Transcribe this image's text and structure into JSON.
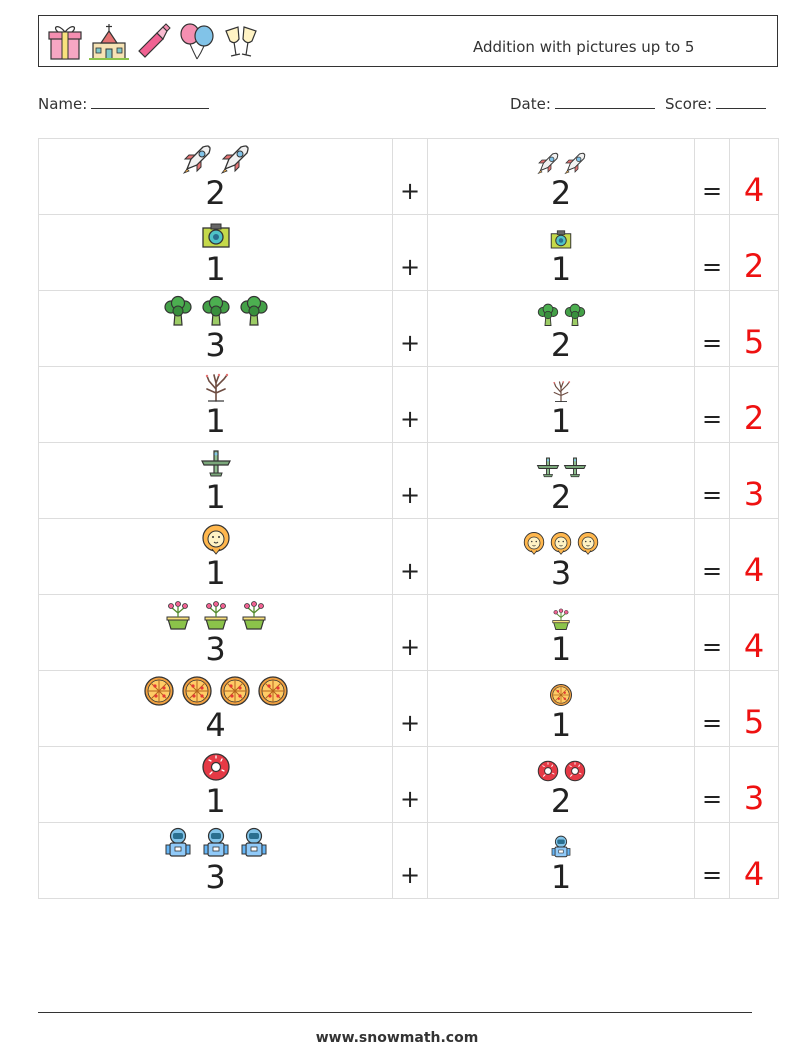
{
  "header": {
    "title": "Addition with pictures up to 5",
    "icons": [
      "gift-icon",
      "church-icon",
      "champagne-bottle-icon",
      "balloons-icon",
      "champagne-glasses-icon"
    ]
  },
  "meta": {
    "name_label": "Name:",
    "date_label": "Date:",
    "score_label": "Score:"
  },
  "operators": {
    "plus": "+",
    "equals": "="
  },
  "problems": [
    {
      "icon": "rocket",
      "a": "2",
      "b": "2",
      "answer": "4"
    },
    {
      "icon": "camera",
      "a": "1",
      "b": "1",
      "answer": "2"
    },
    {
      "icon": "broccoli",
      "a": "3",
      "b": "2",
      "answer": "5"
    },
    {
      "icon": "bare-tree",
      "a": "1",
      "b": "1",
      "answer": "2"
    },
    {
      "icon": "airplane",
      "a": "1",
      "b": "2",
      "answer": "3"
    },
    {
      "icon": "lion",
      "a": "1",
      "b": "3",
      "answer": "4"
    },
    {
      "icon": "flower-pot",
      "a": "3",
      "b": "1",
      "answer": "4"
    },
    {
      "icon": "pizza",
      "a": "4",
      "b": "1",
      "answer": "5"
    },
    {
      "icon": "donut",
      "a": "1",
      "b": "2",
      "answer": "3"
    },
    {
      "icon": "astronaut",
      "a": "3",
      "b": "1",
      "answer": "4"
    }
  ],
  "footer": {
    "url": "www.snowmath.com"
  }
}
